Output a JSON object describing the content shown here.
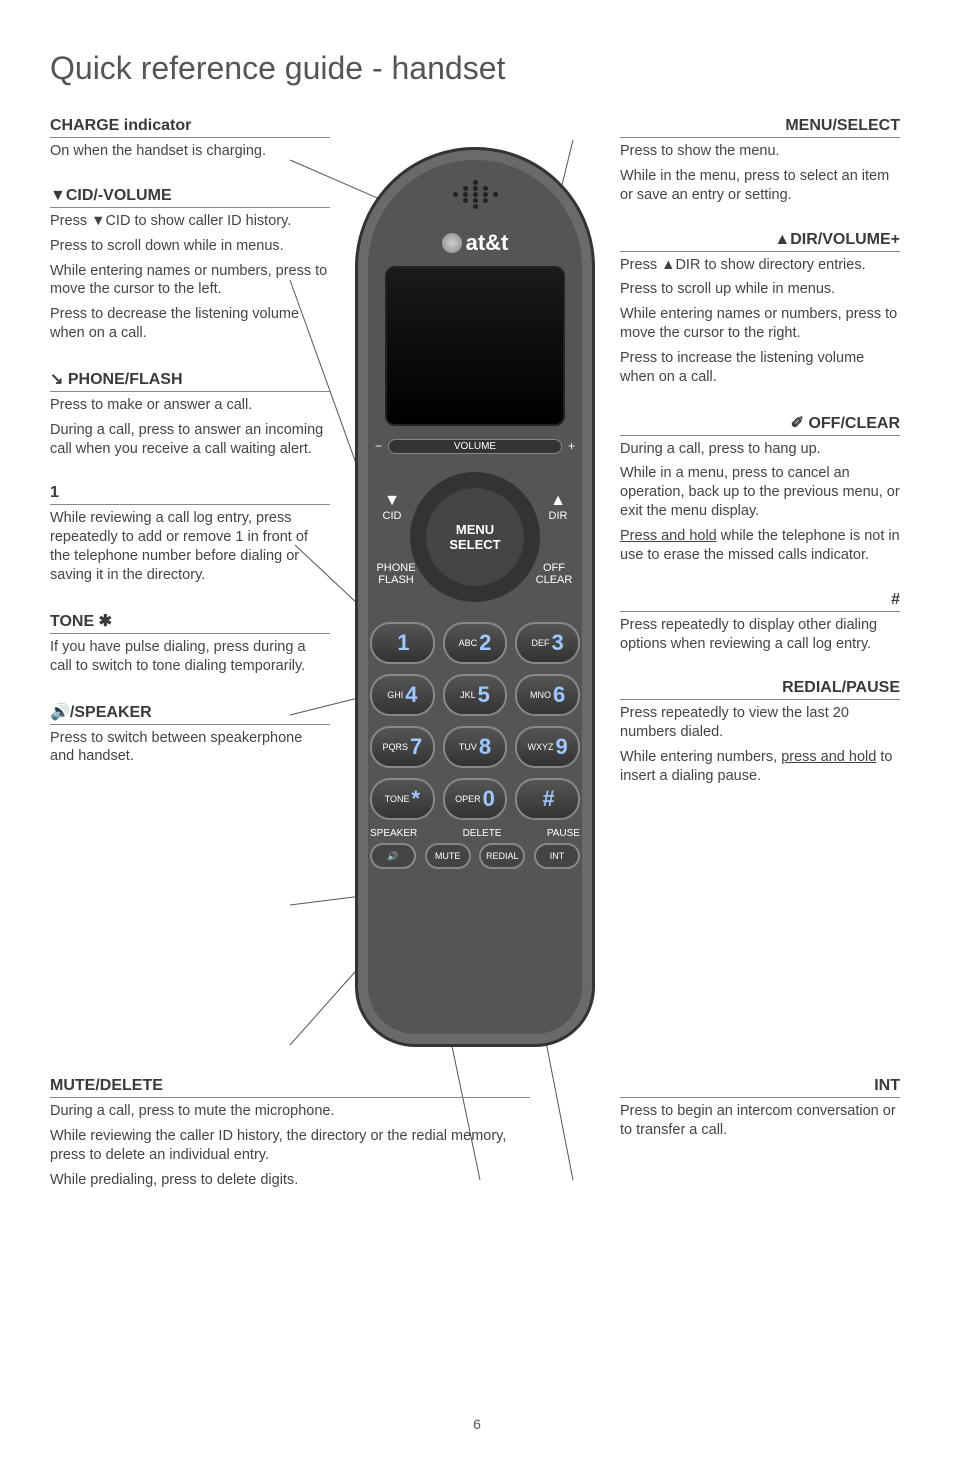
{
  "page_title": "Quick reference guide - handset",
  "page_number": "6",
  "phone": {
    "brand": "at&t",
    "volume_label": "VOLUME",
    "nav": {
      "menu": "MENU",
      "select": "SELECT",
      "cid": "CID",
      "dir": "DIR",
      "phone": "PHONE",
      "flash": "FLASH",
      "off": "OFF",
      "clear": "CLEAR"
    },
    "keys": [
      {
        "sub": "",
        "num": "1"
      },
      {
        "sub": "ABC",
        "num": "2"
      },
      {
        "sub": "DEF",
        "num": "3"
      },
      {
        "sub": "GHI",
        "num": "4"
      },
      {
        "sub": "JKL",
        "num": "5"
      },
      {
        "sub": "MNO",
        "num": "6"
      },
      {
        "sub": "PQRS",
        "num": "7"
      },
      {
        "sub": "TUV",
        "num": "8"
      },
      {
        "sub": "WXYZ",
        "num": "9"
      },
      {
        "sub": "TONE",
        "num": "*"
      },
      {
        "sub": "OPER",
        "num": "0"
      },
      {
        "sub": "",
        "num": "#"
      }
    ],
    "bottom_labels": [
      "SPEAKER",
      "DELETE",
      "PAUSE"
    ],
    "mini_keys": [
      "🔊",
      "MUTE",
      "REDIAL",
      "INT"
    ]
  },
  "left": [
    {
      "title": "CHARGE indicator",
      "paras": [
        "On when the handset is charging."
      ]
    },
    {
      "title": "▼CID/-VOLUME",
      "paras": [
        "Press ▼CID to show caller ID history.",
        "Press to scroll down while in menus.",
        "While entering names or numbers, press to move the cursor to the left.",
        "Press to decrease the listening volume when on a call."
      ]
    },
    {
      "title": "↘ PHONE/FLASH",
      "paras": [
        "Press to make or answer a call.",
        "During a call, press to answer an incoming call when you receive a call waiting alert."
      ]
    },
    {
      "title": "1",
      "paras": [
        "While reviewing a call log entry, press repeatedly to add or remove 1 in front of the telephone number before dialing or saving it in the directory."
      ]
    },
    {
      "title": "TONE ✱",
      "paras": [
        "If you have pulse dialing, press during a call to switch to tone dialing temporarily."
      ]
    },
    {
      "title": "🔊/SPEAKER",
      "paras": [
        "Press to switch between speakerphone and handset."
      ]
    }
  ],
  "right": [
    {
      "title": "MENU/SELECT",
      "paras": [
        "Press to show the menu.",
        "While in the menu, press to select an item or save an entry or setting."
      ]
    },
    {
      "title": "▲DIR/VOLUME+",
      "paras": [
        "Press ▲DIR to show directory entries.",
        "Press to scroll up while in menus.",
        "While entering names or numbers, press to move the cursor to the right.",
        "Press to increase the listening volume when on a call."
      ]
    },
    {
      "title": "✐ OFF/CLEAR",
      "paras": [
        "During a call, press to hang up.",
        "While in a menu, press to cancel an operation, back up to the previous menu, or exit the menu display.",
        "<u>Press and hold</u> while the telephone is not in use to erase the missed calls indicator."
      ]
    },
    {
      "title": "#",
      "paras": [
        "Press repeatedly to display other dialing options when reviewing a call log entry."
      ]
    },
    {
      "title": "REDIAL/PAUSE",
      "paras": [
        "Press repeatedly to view the last 20 numbers dialed.",
        "While entering numbers, <u>press and hold</u> to insert a dialing pause."
      ]
    }
  ],
  "mute_delete": {
    "title": "MUTE/DELETE",
    "paras": [
      "During a call, press to mute the microphone.",
      "While reviewing the caller ID history, the directory or the redial memory, press to delete an individual entry.",
      "While predialing, press to delete digits."
    ]
  },
  "int": {
    "title": "INT",
    "paras": [
      "Press to begin an intercom conversation or to transfer a call."
    ]
  },
  "colors": {
    "text": "#4a4a4a",
    "rule": "#888888",
    "phone_body": "#555555",
    "phone_dark": "#333333",
    "key_num": "#9ec8ff"
  }
}
